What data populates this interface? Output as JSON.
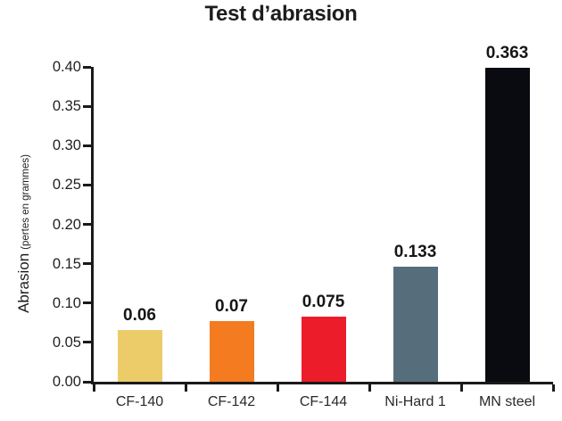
{
  "page": {
    "background": "#ffffff"
  },
  "chart_data": {
    "type": "bar",
    "title": "Test d’abrasion",
    "categories": [
      "CF-140",
      "CF-142",
      "CF-144",
      "Ni-Hard 1",
      "MN steel"
    ],
    "values": [
      0.06,
      0.07,
      0.075,
      0.133,
      0.363
    ],
    "value_labels": [
      "0.06",
      "0.07",
      "0.075",
      "0.133",
      "0.363"
    ],
    "bar_colors": [
      "#eccb69",
      "#f47b20",
      "#ed1c2b",
      "#566e7c",
      "#0a0a11"
    ],
    "xlabel": "",
    "ylabel": "Abrasion",
    "ylabel_sub": "(pertes en grammes)",
    "ylim": [
      0,
      0.4
    ],
    "ytick_step": 0.05,
    "ytick_labels": [
      "0.00",
      "0.05",
      "0.10",
      "0.15",
      "0.20",
      "0.25",
      "0.30",
      "0.35",
      "0.40"
    ],
    "grid": false,
    "legend_position": "none",
    "axis_color": "#1a1a1a",
    "text_color": "#231f20"
  }
}
